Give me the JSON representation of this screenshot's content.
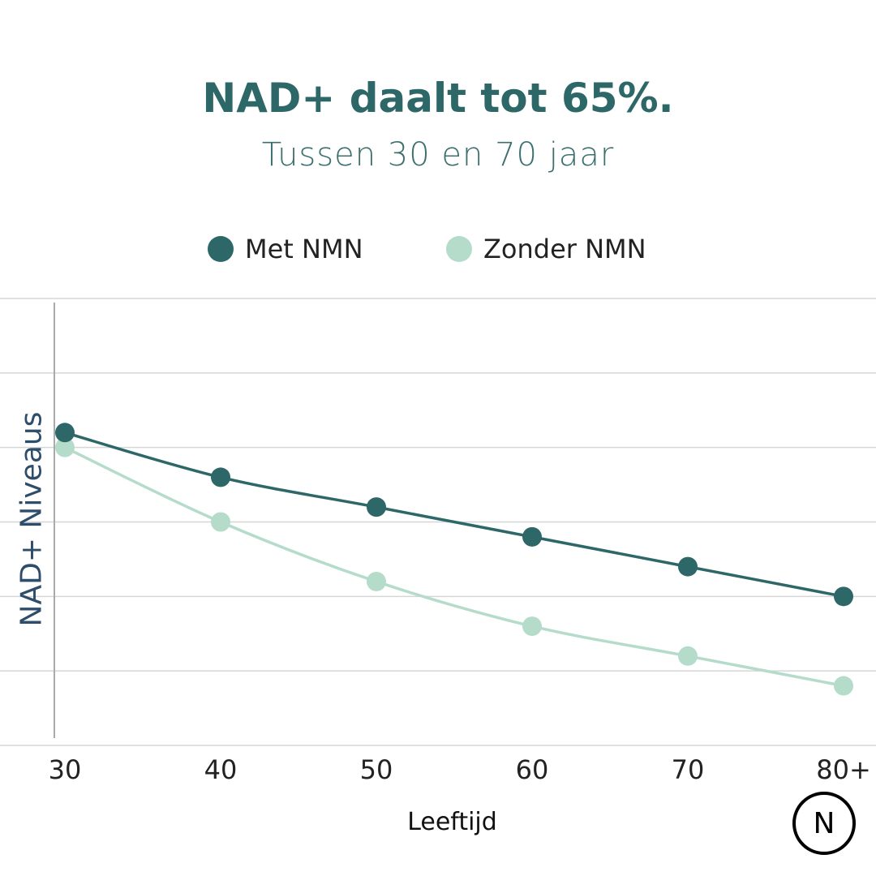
{
  "chart_data": {
    "type": "line",
    "title": "NAD+ daalt tot 65%.",
    "subtitle": "Tussen 30 en 70 jaar",
    "xlabel": "Leeftijd",
    "ylabel": "NAD+ Niveaus",
    "categories": [
      "30",
      "40",
      "50",
      "60",
      "70",
      "80+"
    ],
    "ylim": [
      0,
      6
    ],
    "grid": true,
    "legend_position": "top",
    "series": [
      {
        "name": "Met NMN",
        "color": "#2e6767",
        "values": [
          4.2,
          3.6,
          3.2,
          2.8,
          2.4,
          2.0
        ]
      },
      {
        "name": "Zonder NMN",
        "color": "#b5dccb",
        "values": [
          4.0,
          3.0,
          2.2,
          1.6,
          1.2,
          0.8
        ]
      }
    ]
  },
  "logo": {
    "letter": "N"
  }
}
